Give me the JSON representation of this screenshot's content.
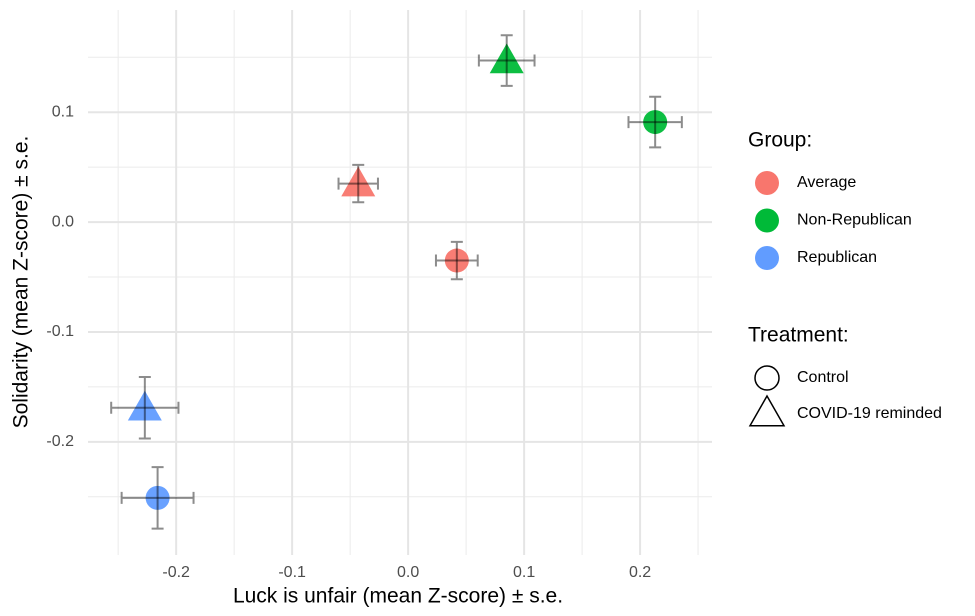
{
  "chart_data": {
    "type": "scatter",
    "xlabel": "Luck is unfair (mean Z-score) ± s.e.",
    "ylabel": "Solidarity (mean Z-score) ± s.e.",
    "xlim": [
      -0.276,
      0.262
    ],
    "ylim": [
      -0.303,
      0.193
    ],
    "xticks": [
      -0.2,
      -0.1,
      {
        "value": 0,
        "label": "0.0"
      },
      0.1,
      0.2
    ],
    "yticks": [
      -0.2,
      -0.1,
      {
        "value": 0,
        "label": "0.0"
      },
      0.1
    ],
    "xminorticks": [
      -0.25,
      -0.15,
      -0.05,
      0.05,
      0.15,
      0.25
    ],
    "yminorticks": [
      -0.25,
      -0.15,
      -0.05,
      0.05,
      0.15
    ],
    "grid": true,
    "legend_title": "Group:",
    "shape_legend_title": "Treatment:",
    "treatments": [
      "Control",
      "COVID-19 reminded"
    ],
    "shapes": [
      "circle",
      "triangle"
    ],
    "series": [
      {
        "name": "Average",
        "color": "#F8766D",
        "x": [
          0.042,
          -0.043
        ],
        "y": [
          -0.035,
          0.035
        ],
        "xerr": [
          0.018,
          0.017
        ],
        "yerr": [
          0.017,
          0.017
        ]
      },
      {
        "name": "Non-Republican",
        "color": "#00BA38",
        "x": [
          0.213,
          0.085
        ],
        "y": [
          0.091,
          0.147
        ],
        "xerr": [
          0.023,
          0.024
        ],
        "yerr": [
          0.023,
          0.023
        ]
      },
      {
        "name": "Republican",
        "color": "#619CFF",
        "x": [
          -0.216,
          -0.227
        ],
        "y": [
          -0.251,
          -0.169
        ],
        "xerr": [
          0.031,
          0.029
        ],
        "yerr": [
          0.028,
          0.028
        ]
      }
    ]
  }
}
